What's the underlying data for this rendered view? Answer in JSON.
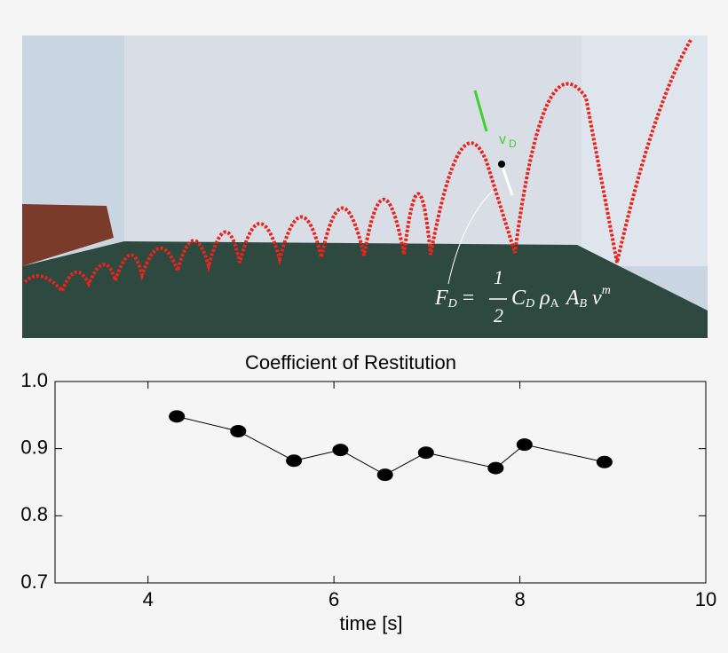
{
  "photo": {
    "velocity_symbol": "v",
    "velocity_sub": "D",
    "formula": {
      "lhs": "F",
      "lhs_sub": "D",
      "equals": "=",
      "numerator": "1",
      "denominator": "2",
      "c": "C",
      "c_sub": "D",
      "rho": "ρ",
      "rho_sub": "A",
      "a": "A",
      "a_sub": "B",
      "v": "v",
      "v_exp": "m"
    }
  },
  "chart_data": {
    "type": "line",
    "title": "Coefficient of Restitution",
    "x_label": "time [s]",
    "series": [
      {
        "name": null,
        "color": "#000000",
        "x": [
          4.31,
          4.97,
          5.57,
          6.07,
          6.55,
          6.99,
          7.74,
          8.05,
          8.91
        ],
        "values": [
          0.948,
          0.926,
          0.882,
          0.898,
          0.861,
          0.894,
          0.871,
          0.906,
          0.88
        ]
      }
    ],
    "xlim": [
      3,
      10
    ],
    "xticks": [
      4,
      6,
      8,
      10
    ],
    "ylim": [
      0.7,
      1.0
    ],
    "yticks": [
      0.7,
      0.8,
      0.9,
      {
        "value": 1,
        "label": "1.0"
      }
    ]
  }
}
